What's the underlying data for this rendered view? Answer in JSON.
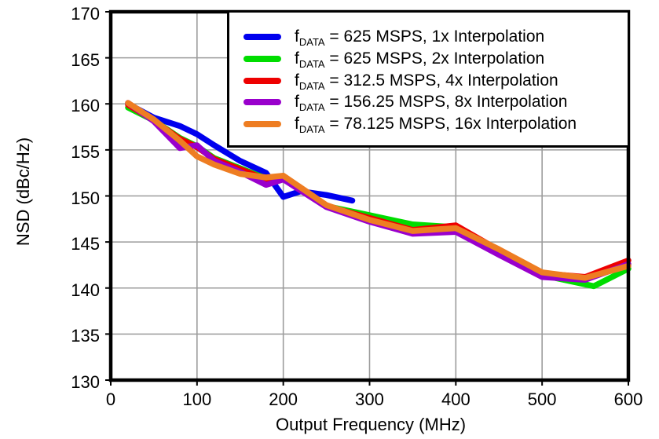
{
  "chart_data": {
    "type": "line",
    "title": "",
    "xlabel": "Output Frequency (MHz)",
    "ylabel": "NSD (dBc/Hz)",
    "xlim": [
      0,
      600
    ],
    "ylim": [
      130,
      170
    ],
    "x_ticks": [
      0,
      100,
      200,
      300,
      400,
      500,
      600
    ],
    "y_ticks": [
      130,
      135,
      140,
      145,
      150,
      155,
      160,
      165,
      170
    ],
    "grid": true,
    "grid_color": "#9c9c9c",
    "frame_color": "#000000",
    "legend_position": "top-right",
    "series": [
      {
        "id": "1x",
        "name": "fDATA = 625 MSPS, 1x Interpolation",
        "legend": {
          "prefix": "f",
          "sub": "DATA",
          "rest": " = 625 MSPS, 1x Interpolation"
        },
        "color": "#0000EE",
        "points": [
          [
            20,
            160.0
          ],
          [
            50,
            158.5
          ],
          [
            80,
            157.6
          ],
          [
            100,
            156.7
          ],
          [
            120,
            155.5
          ],
          [
            150,
            153.8
          ],
          [
            180,
            152.5
          ],
          [
            200,
            149.9
          ],
          [
            220,
            150.5
          ],
          [
            250,
            150.1
          ],
          [
            280,
            149.5
          ]
        ]
      },
      {
        "id": "2x",
        "name": "fDATA = 625 MSPS, 2x Interpolation",
        "legend": {
          "prefix": "f",
          "sub": "DATA",
          "rest": " = 625 MSPS, 2x Interpolation"
        },
        "color": "#00DD00",
        "points": [
          [
            20,
            159.6
          ],
          [
            50,
            158.2
          ],
          [
            80,
            156.3
          ],
          [
            100,
            155.4
          ],
          [
            120,
            154.1
          ],
          [
            150,
            153.0
          ],
          [
            180,
            151.9
          ],
          [
            200,
            152.0
          ],
          [
            250,
            148.9
          ],
          [
            300,
            147.9
          ],
          [
            350,
            146.9
          ],
          [
            400,
            146.6
          ],
          [
            450,
            144.0
          ],
          [
            500,
            141.4
          ],
          [
            560,
            140.2
          ],
          [
            600,
            142.1
          ]
        ]
      },
      {
        "id": "4x",
        "name": "fDATA = 312.5 MSPS, 4x Interpolation",
        "legend": {
          "prefix": "f",
          "sub": "DATA",
          "rest": " = 312.5 MSPS, 4x Interpolation"
        },
        "color": "#EE0000",
        "points": [
          [
            20,
            159.9
          ],
          [
            50,
            158.2
          ],
          [
            80,
            156.2
          ],
          [
            100,
            155.3
          ],
          [
            120,
            154.0
          ],
          [
            150,
            152.9
          ],
          [
            180,
            151.8
          ],
          [
            200,
            151.9
          ],
          [
            250,
            148.9
          ],
          [
            300,
            147.6
          ],
          [
            350,
            146.3
          ],
          [
            400,
            146.8
          ],
          [
            450,
            144.1
          ],
          [
            500,
            141.6
          ],
          [
            550,
            141.2
          ],
          [
            600,
            143.0
          ]
        ]
      },
      {
        "id": "8x",
        "name": "fDATA = 156.25 MSPS, 8x Interpolation",
        "legend": {
          "prefix": "f",
          "sub": "DATA",
          "rest": " = 156.25 MSPS, 8x Interpolation"
        },
        "color": "#9900CC",
        "points": [
          [
            20,
            160.1
          ],
          [
            50,
            158.1
          ],
          [
            80,
            155.2
          ],
          [
            100,
            155.5
          ],
          [
            120,
            153.8
          ],
          [
            150,
            152.6
          ],
          [
            180,
            151.2
          ],
          [
            200,
            151.8
          ],
          [
            250,
            148.8
          ],
          [
            300,
            147.2
          ],
          [
            350,
            145.9
          ],
          [
            400,
            146.1
          ],
          [
            450,
            143.6
          ],
          [
            500,
            141.2
          ],
          [
            550,
            140.9
          ],
          [
            600,
            142.6
          ]
        ]
      },
      {
        "id": "16x",
        "name": "fDATA = 78.125 MSPS, 16x Interpolation",
        "legend": {
          "prefix": "f",
          "sub": "DATA",
          "rest": " = 78.125 MSPS, 16x Interpolation"
        },
        "color": "#EE7D22",
        "points": [
          [
            20,
            160.1
          ],
          [
            50,
            158.3
          ],
          [
            80,
            156.0
          ],
          [
            100,
            154.3
          ],
          [
            120,
            153.4
          ],
          [
            150,
            152.4
          ],
          [
            180,
            152.0
          ],
          [
            200,
            152.2
          ],
          [
            250,
            149.0
          ],
          [
            300,
            147.4
          ],
          [
            350,
            146.2
          ],
          [
            400,
            146.5
          ],
          [
            450,
            144.2
          ],
          [
            500,
            141.7
          ],
          [
            550,
            141.1
          ],
          [
            600,
            142.4
          ]
        ]
      }
    ]
  }
}
